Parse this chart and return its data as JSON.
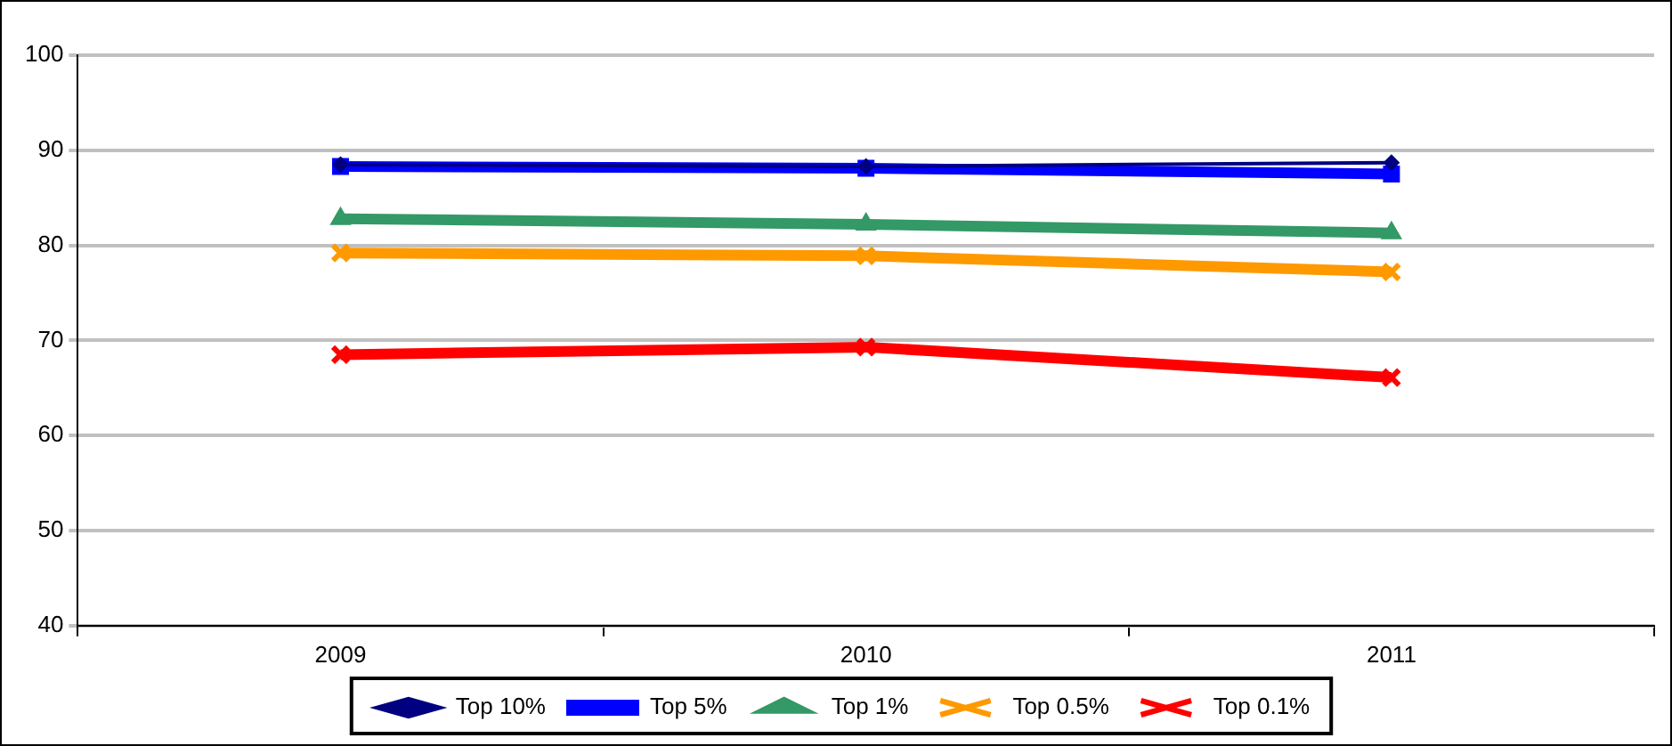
{
  "chart_data": {
    "type": "line",
    "categories": [
      "2009",
      "2010",
      "2011"
    ],
    "series": [
      {
        "name": "Top 10%",
        "color": "#000080",
        "marker": "diamond",
        "values": [
          88.5,
          88.3,
          88.7
        ]
      },
      {
        "name": "Top 5%",
        "color": "#0000ff",
        "marker": "square",
        "values": [
          88.3,
          88.1,
          87.5
        ]
      },
      {
        "name": "Top 1%",
        "color": "#339966",
        "marker": "triangle",
        "values": [
          82.8,
          82.2,
          81.3
        ]
      },
      {
        "name": "Top 0.5%",
        "color": "#ff9900",
        "marker": "cross",
        "values": [
          79.2,
          78.9,
          77.2
        ]
      },
      {
        "name": "Top 0.1%",
        "color": "#ff0000",
        "marker": "cross",
        "values": [
          68.5,
          69.3,
          66.1
        ]
      }
    ],
    "ylim": [
      40,
      100
    ],
    "yticks": [
      40,
      50,
      60,
      70,
      80,
      90,
      100
    ],
    "grid": "y",
    "legend": "bottom",
    "line_style": "solid"
  }
}
